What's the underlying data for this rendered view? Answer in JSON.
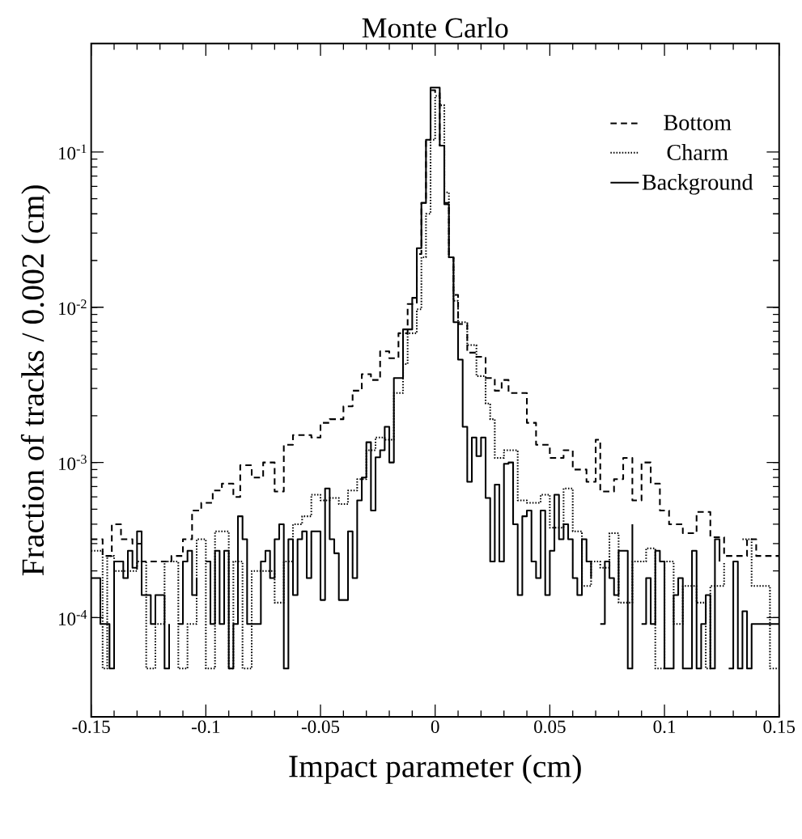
{
  "chart_data": {
    "type": "step",
    "title": "Monte Carlo",
    "xlabel": "Impact parameter (cm)",
    "ylabel": "Fraction of tracks / 0.002 (cm)",
    "log": "y",
    "legend": "top right",
    "xlim": [
      -0.15,
      0.15
    ],
    "xticks": [
      -0.15,
      -0.1,
      -0.05,
      0,
      0.05,
      0.1,
      0.15
    ],
    "ylim": [
      2.3e-05,
      0.5
    ],
    "yticks": [
      {
        "value": 0.0001,
        "label": "10$^{-4}$"
      },
      {
        "value": 0.001,
        "label": "10$^{-3}$"
      },
      {
        "value": 0.01,
        "label": "10$^{-2}$"
      },
      {
        "value": 0.1,
        "label": "10$^{-1}$"
      }
    ],
    "series": [
      {
        "name": "Bottom",
        "color": "#000000",
        "line_style": "dashed",
        "x": [
          -0.15,
          -0.145,
          -0.141,
          -0.137,
          -0.132,
          -0.128,
          -0.115,
          -0.11,
          -0.106,
          -0.102,
          -0.097,
          -0.093,
          -0.088,
          -0.085,
          -0.08,
          -0.075,
          -0.07,
          -0.066,
          -0.062,
          -0.054,
          -0.05,
          -0.046,
          -0.04,
          -0.036,
          -0.032,
          -0.028,
          -0.024,
          -0.02,
          -0.016,
          -0.012,
          -0.008,
          -0.006,
          -0.004,
          -0.002,
          0,
          0.002,
          0.004,
          0.006,
          0.008,
          0.01,
          0.014,
          0.018,
          0.022,
          0.026,
          0.029,
          0.032,
          0.036,
          0.04,
          0.044,
          0.05,
          0.056,
          0.06,
          0.066,
          0.07,
          0.072,
          0.078,
          0.082,
          0.086,
          0.09,
          0.094,
          0.098,
          0.102,
          0.108,
          0.114,
          0.12,
          0.126,
          0.136,
          0.14,
          0.15
        ],
        "values": [
          0.00032,
          0.00025,
          0.0004,
          0.00032,
          0.0003,
          0.00023,
          0.00025,
          0.00032,
          0.00049,
          0.00055,
          0.00066,
          0.00073,
          0.0006,
          0.00096,
          0.0008,
          0.001,
          0.00065,
          0.0013,
          0.0015,
          0.00145,
          0.0018,
          0.0019,
          0.0023,
          0.0029,
          0.0037,
          0.0034,
          0.0052,
          0.0047,
          0.0068,
          0.0105,
          0.022,
          0.047,
          0.12,
          0.25,
          0.24,
          0.11,
          0.047,
          0.021,
          0.012,
          0.0078,
          0.0051,
          0.0048,
          0.0035,
          0.0029,
          0.0034,
          0.0028,
          0.0028,
          0.0018,
          0.0013,
          0.00107,
          0.0012,
          0.0009,
          0.00075,
          0.0014,
          0.00065,
          0.00078,
          0.00107,
          0.00057,
          0.001,
          0.00073,
          0.00049,
          0.0004,
          0.00035,
          0.00048,
          0.00033,
          0.00025,
          0.00032,
          0.00025,
          0.00025
        ]
      },
      {
        "name": "Charm",
        "color": "#000000",
        "line_style": "dotted",
        "x": [
          -0.15,
          -0.145,
          -0.143,
          -0.14,
          -0.13,
          -0.126,
          -0.122,
          -0.118,
          -0.112,
          -0.108,
          -0.104,
          -0.1,
          -0.096,
          -0.09,
          -0.088,
          -0.084,
          -0.08,
          -0.07,
          -0.066,
          -0.062,
          -0.058,
          -0.054,
          -0.05,
          -0.046,
          -0.042,
          -0.038,
          -0.034,
          -0.03,
          -0.026,
          -0.022,
          -0.018,
          -0.014,
          -0.012,
          -0.008,
          -0.006,
          -0.004,
          -0.002,
          0,
          0.002,
          0.004,
          0.006,
          0.008,
          0.01,
          0.014,
          0.018,
          0.022,
          0.024,
          0.026,
          0.03,
          0.036,
          0.04,
          0.046,
          0.05,
          0.056,
          0.06,
          0.064,
          0.068,
          0.072,
          0.076,
          0.08,
          0.086,
          0.092,
          0.096,
          0.1,
          0.104,
          0.108,
          0.114,
          0.118,
          0.12,
          0.126,
          0.13,
          0.134,
          0.138,
          0.146,
          0.15
        ],
        "values": [
          0.00027,
          4.7e-05,
          0.00025,
          0.0002,
          0.00023,
          4.7e-05,
          9.1e-05,
          0.00023,
          4.7e-05,
          9.1e-05,
          0.00032,
          4.7e-05,
          0.00036,
          4.7e-05,
          0.00023,
          4.7e-05,
          0.0002,
          0.000125,
          0.00023,
          0.0004,
          0.00045,
          0.00062,
          0.00057,
          0.00059,
          0.00054,
          0.00066,
          0.00078,
          0.0012,
          0.00145,
          0.0014,
          0.0028,
          0.0043,
          0.0068,
          0.0097,
          0.021,
          0.04,
          0.12,
          0.23,
          0.2,
          0.055,
          0.021,
          0.011,
          0.008,
          0.0057,
          0.0036,
          0.0024,
          0.0019,
          0.00107,
          0.0012,
          0.00057,
          0.00055,
          0.00062,
          0.00038,
          0.00068,
          0.00036,
          0.00016,
          0.00023,
          0.00021,
          0.00035,
          0.000125,
          0.00023,
          0.00028,
          4.7e-05,
          0.00023,
          9.1e-05,
          0.00016,
          0.000125,
          4.7e-05,
          0.00016,
          0.00023,
          null,
          0.00032,
          0.00016,
          4.7e-05,
          4.7e-05
        ]
      },
      {
        "name": "Background",
        "color": "#000000",
        "line_style": "solid",
        "x": [
          -0.15,
          -0.146,
          -0.142,
          -0.14,
          -0.136,
          -0.134,
          -0.132,
          -0.13,
          -0.128,
          -0.124,
          -0.122,
          -0.118,
          -0.116,
          -0.114,
          -0.112,
          -0.11,
          -0.108,
          -0.106,
          -0.104,
          -0.102,
          -0.1,
          -0.098,
          -0.096,
          -0.094,
          -0.092,
          -0.09,
          -0.088,
          -0.086,
          -0.084,
          -0.082,
          -0.076,
          -0.074,
          -0.072,
          -0.07,
          -0.068,
          -0.066,
          -0.064,
          -0.062,
          -0.06,
          -0.058,
          -0.056,
          -0.054,
          -0.05,
          -0.048,
          -0.046,
          -0.044,
          -0.042,
          -0.038,
          -0.036,
          -0.034,
          -0.032,
          -0.03,
          -0.028,
          -0.026,
          -0.024,
          -0.022,
          -0.02,
          -0.018,
          -0.014,
          -0.01,
          -0.008,
          -0.006,
          -0.004,
          -0.002,
          0,
          0.002,
          0.004,
          0.006,
          0.008,
          0.01,
          0.012,
          0.014,
          0.016,
          0.018,
          0.02,
          0.022,
          0.024,
          0.026,
          0.028,
          0.03,
          0.032,
          0.034,
          0.036,
          0.038,
          0.04,
          0.042,
          0.044,
          0.046,
          0.048,
          0.05,
          0.052,
          0.054,
          0.056,
          0.058,
          0.06,
          0.062,
          0.064,
          0.066,
          0.068,
          0.07,
          0.072,
          0.074,
          0.076,
          0.078,
          0.08,
          0.084,
          0.086,
          0.088,
          0.09,
          0.092,
          0.094,
          0.096,
          0.098,
          0.1,
          0.104,
          0.106,
          0.108,
          0.112,
          0.114,
          0.116,
          0.118,
          0.12,
          0.122,
          0.124,
          0.126,
          0.128,
          0.13,
          0.132,
          0.134,
          0.136,
          0.138,
          0.15
        ],
        "values": [
          0.00018,
          9.1e-05,
          4.7e-05,
          0.00023,
          0.00018,
          0.00027,
          0.00021,
          0.00036,
          0.00014,
          9.1e-05,
          0.00014,
          4.7e-05,
          9.1e-05,
          null,
          9.1e-05,
          0.00023,
          0.00027,
          0.00014,
          0.00018,
          null,
          0.00023,
          9.1e-05,
          0.00027,
          9.1e-05,
          0.00027,
          4.7e-05,
          9.1e-05,
          0.00045,
          0.00032,
          9.1e-05,
          0.00023,
          0.00027,
          0.00018,
          0.00032,
          0.0004,
          4.7e-05,
          0.00032,
          0.00014,
          0.00032,
          0.00036,
          0.00018,
          0.00036,
          0.00013,
          0.00068,
          0.00032,
          0.00026,
          0.00013,
          0.00036,
          0.00018,
          0.00057,
          0.0008,
          0.00135,
          0.00049,
          0.00108,
          0.0012,
          0.0017,
          0.001,
          0.0035,
          0.0072,
          0.0115,
          0.024,
          0.047,
          0.12,
          0.26,
          0.26,
          0.11,
          0.046,
          0.021,
          0.008,
          0.0046,
          0.0017,
          0.00075,
          0.00145,
          0.0011,
          0.00145,
          0.00059,
          0.00023,
          0.00072,
          0.00023,
          0.00098,
          0.001,
          0.0004,
          0.00014,
          0.00045,
          0.00049,
          0.00023,
          0.00018,
          0.00049,
          0.00014,
          0.00027,
          0.00062,
          0.00032,
          0.0004,
          0.00032,
          0.00018,
          0.00014,
          0.00032,
          0.00023,
          0.00018,
          null,
          9.1e-05,
          0.00023,
          0.00018,
          0.00014,
          0.00027,
          4.7e-05,
          0.0004,
          null,
          9.1e-05,
          0.00018,
          9.1e-05,
          0.00027,
          0.00023,
          4.7e-05,
          0.00014,
          0.00018,
          4.7e-05,
          0.00027,
          4.7e-05,
          9.1e-05,
          0.00014,
          4.7e-05,
          0.00032,
          0.00023,
          null,
          4.7e-05,
          0.00023,
          4.7e-05,
          0.00011,
          4.7e-05,
          9.1e-05,
          9.1e-05
        ]
      }
    ]
  }
}
